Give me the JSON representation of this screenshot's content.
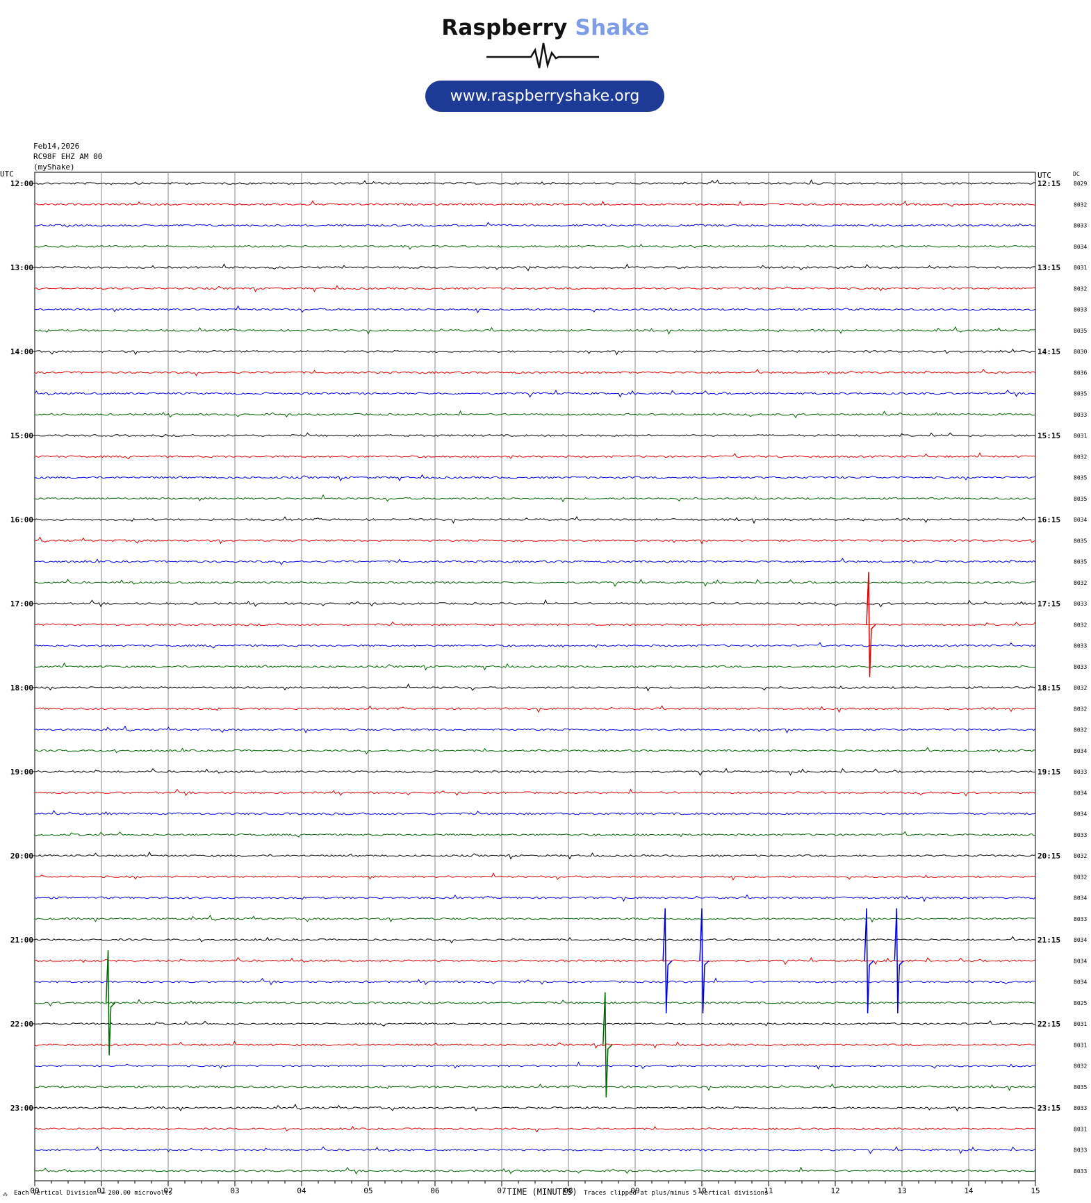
{
  "branding": {
    "name_part1": "Raspberry",
    "name_part2": "Shake",
    "url": "www.raspberryshake.org",
    "colors": {
      "dark": "#111111",
      "light": "#7f9de6",
      "pill": "#1d3a96"
    }
  },
  "header": {
    "date": "Feb14,2026",
    "station": "RC98F EHZ AM 00",
    "network": "(myShake)"
  },
  "axis": {
    "left_label": "UTC",
    "right_label": "UTC",
    "dc_label": "DC",
    "xlabel": "TIME (MINUTES)",
    "x_ticks": [
      "00",
      "01",
      "02",
      "03",
      "04",
      "05",
      "06",
      "07",
      "08",
      "09",
      "10",
      "11",
      "12",
      "13",
      "14",
      "15"
    ],
    "left_times": [
      "12:00",
      "13:00",
      "14:00",
      "15:00",
      "16:00",
      "17:00",
      "18:00",
      "19:00",
      "20:00",
      "21:00",
      "22:00",
      "23:00"
    ],
    "right_times": [
      "12:15",
      "13:15",
      "14:15",
      "15:15",
      "16:15",
      "17:15",
      "18:15",
      "19:15",
      "20:15",
      "21:15",
      "22:15",
      "23:15"
    ],
    "dc_values": [
      "8029",
      "8032",
      "8033",
      "8034",
      "8031",
      "8032",
      "8033",
      "8035",
      "8030",
      "8036",
      "8035",
      "8033",
      "8031",
      "8032",
      "8035",
      "8035",
      "8034",
      "8035",
      "8035",
      "8032",
      "8033",
      "8032",
      "8033",
      "8033",
      "8032",
      "8032",
      "8032",
      "8034",
      "8033",
      "8034",
      "8034",
      "8033",
      "8032",
      "8032",
      "8034",
      "8033",
      "8034",
      "8034",
      "8034",
      "8025",
      "8031",
      "8031",
      "8032",
      "8035",
      "8033",
      "8031",
      "8033",
      "8033"
    ]
  },
  "footer": {
    "left_note": "Each Vertical Division =  200.00 microvolts",
    "right_note": "Traces clipped at plus/minus 5 vertical divisions"
  },
  "chart_data": {
    "type": "line",
    "title": "",
    "xlabel": "TIME (MINUTES)",
    "ylabel": "UTC",
    "xlim": [
      0,
      15
    ],
    "rows_per_hour": 4,
    "row_minutes": 15,
    "row_count": 48,
    "trace_colors": [
      "#000000",
      "#e00000",
      "#0000e0",
      "#006400"
    ],
    "grid": true,
    "events": [
      {
        "row": 21,
        "minute": 12.5,
        "amplitude": 5,
        "color_index": 1
      },
      {
        "row": 37,
        "minute": 9.45,
        "amplitude": 5,
        "color_index": 2
      },
      {
        "row": 37,
        "minute": 10.0,
        "amplitude": 5,
        "color_index": 2
      },
      {
        "row": 37,
        "minute": 12.47,
        "amplitude": 5,
        "color_index": 2
      },
      {
        "row": 37,
        "minute": 12.92,
        "amplitude": 5,
        "color_index": 2
      },
      {
        "row": 39,
        "minute": 1.1,
        "amplitude": 5,
        "color_index": 3
      },
      {
        "row": 41,
        "minute": 8.55,
        "amplitude": 5,
        "color_index": 3
      }
    ]
  }
}
